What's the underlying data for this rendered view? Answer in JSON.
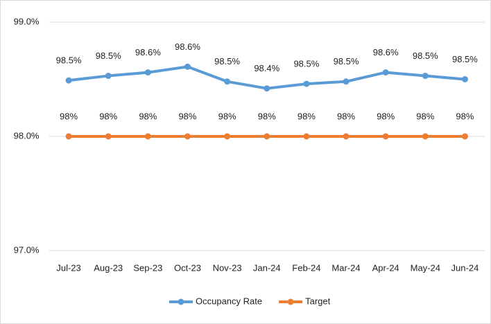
{
  "chart_data": {
    "type": "line",
    "categories": [
      "Jul-23",
      "Aug-23",
      "Sep-23",
      "Oct-23",
      "Nov-23",
      "Jan-24",
      "Feb-24",
      "Mar-24",
      "Apr-24",
      "May-24",
      "Jun-24"
    ],
    "series": [
      {
        "name": "Occupancy Rate",
        "color": "#5b9bd5",
        "values": [
          98.49,
          98.53,
          98.56,
          98.61,
          98.48,
          98.42,
          98.46,
          98.48,
          98.56,
          98.53,
          98.5
        ],
        "value_labels": [
          "98.5%",
          "98.5%",
          "98.6%",
          "98.6%",
          "98.5%",
          "98.4%",
          "98.5%",
          "98.5%",
          "98.6%",
          "98.5%",
          "98.5%"
        ]
      },
      {
        "name": "Target",
        "color": "#ed7d31",
        "values": [
          98,
          98,
          98,
          98,
          98,
          98,
          98,
          98,
          98,
          98,
          98
        ],
        "value_labels": [
          "98%",
          "98%",
          "98%",
          "98%",
          "98%",
          "98%",
          "98%",
          "98%",
          "98%",
          "98%",
          "98%"
        ]
      }
    ],
    "ylim": [
      97,
      99
    ],
    "yticks": [
      {
        "value": 97,
        "label": "97.0%"
      },
      {
        "value": 98,
        "label": "98.0%"
      },
      {
        "value": 99,
        "label": "99.0%"
      }
    ],
    "grid": true,
    "legend": "bottom"
  }
}
